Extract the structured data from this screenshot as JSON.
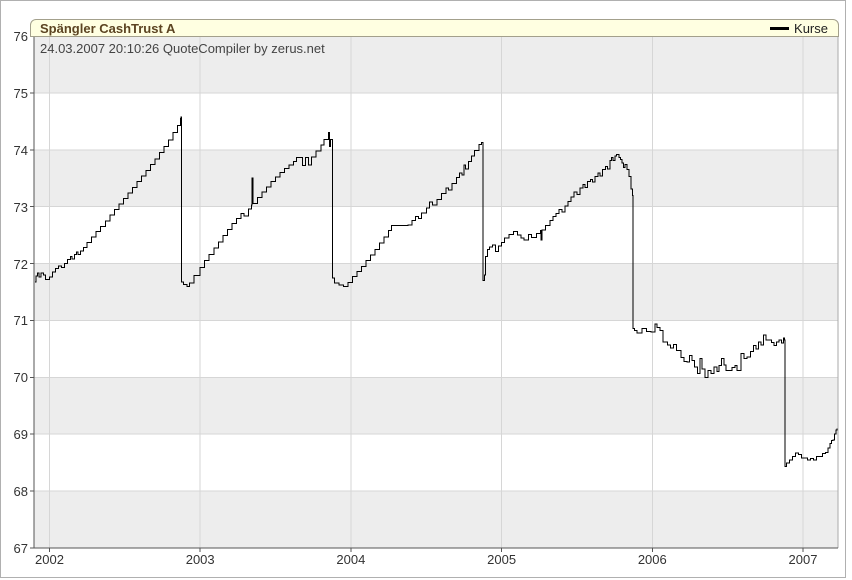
{
  "widget": {
    "title": "Spängler CashTrust A",
    "legend_label": "Kurse",
    "timestamp_note": "24.03.2007 20:10:26 QuoteCompiler by zerus.net"
  },
  "colors": {
    "header_bg": "#ffffe1",
    "header_border": "#a3a08c",
    "title_text": "#5c4422",
    "band_gray": "#ededed",
    "gridline": "#d6d6d6",
    "axis": "#555555",
    "plot_right_border": "#aaaaaa",
    "tick_text": "#333333",
    "series_line": "#000000"
  },
  "chart_data": {
    "type": "line",
    "title": "Spängler CashTrust A",
    "annotation": "24.03.2007 20:10:26 QuoteCompiler by zerus.net",
    "legend_position": "top-right",
    "interpolation": "step-after",
    "grid": true,
    "banding": "alternating horizontal 1-unit bands, gray on odd lower bound",
    "xlim": [
      2001.9,
      2007.23
    ],
    "ylim": [
      67,
      76
    ],
    "x_tick_values": [
      2002,
      2003,
      2004,
      2005,
      2006,
      2007
    ],
    "x_ticks": [
      "2002",
      "2003",
      "2004",
      "2005",
      "2006",
      "2007"
    ],
    "y_tick_values": [
      76,
      75,
      74,
      73,
      72,
      71,
      70,
      69,
      68,
      67
    ],
    "y_ticks": [
      "76",
      "75",
      "74",
      "73",
      "72",
      "71",
      "70",
      "69",
      "68",
      "67"
    ],
    "series": [
      {
        "name": "Kurse",
        "color": "#000000",
        "points": [
          [
            2001.904,
            71.68
          ],
          [
            2001.912,
            71.78
          ],
          [
            2001.92,
            71.83
          ],
          [
            2001.93,
            71.76
          ],
          [
            2001.945,
            71.83
          ],
          [
            2001.96,
            71.8
          ],
          [
            2001.975,
            71.72
          ],
          [
            2002.0,
            71.76
          ],
          [
            2002.02,
            71.85
          ],
          [
            2002.04,
            71.91
          ],
          [
            2002.06,
            71.96
          ],
          [
            2002.08,
            71.93
          ],
          [
            2002.1,
            72.0
          ],
          [
            2002.12,
            72.07
          ],
          [
            2002.14,
            72.12
          ],
          [
            2002.15,
            72.08
          ],
          [
            2002.165,
            72.16
          ],
          [
            2002.18,
            72.2
          ],
          [
            2002.19,
            72.16
          ],
          [
            2002.205,
            72.22
          ],
          [
            2002.225,
            72.28
          ],
          [
            2002.25,
            72.37
          ],
          [
            2002.28,
            72.47
          ],
          [
            2002.31,
            72.56
          ],
          [
            2002.34,
            72.65
          ],
          [
            2002.37,
            72.75
          ],
          [
            2002.4,
            72.85
          ],
          [
            2002.43,
            72.95
          ],
          [
            2002.46,
            73.05
          ],
          [
            2002.49,
            73.14
          ],
          [
            2002.52,
            73.24
          ],
          [
            2002.55,
            73.34
          ],
          [
            2002.58,
            73.44
          ],
          [
            2002.61,
            73.54
          ],
          [
            2002.64,
            73.64
          ],
          [
            2002.67,
            73.74
          ],
          [
            2002.7,
            73.84
          ],
          [
            2002.73,
            73.95
          ],
          [
            2002.76,
            74.06
          ],
          [
            2002.79,
            74.17
          ],
          [
            2002.82,
            74.3
          ],
          [
            2002.85,
            74.43
          ],
          [
            2002.868,
            74.55
          ],
          [
            2002.872,
            74.58
          ],
          [
            2002.877,
            71.68
          ],
          [
            2002.89,
            71.63
          ],
          [
            2002.912,
            71.6
          ],
          [
            2002.93,
            71.66
          ],
          [
            2002.96,
            71.79
          ],
          [
            2003.0,
            71.93
          ],
          [
            2003.03,
            72.05
          ],
          [
            2003.06,
            72.16
          ],
          [
            2003.09,
            72.27
          ],
          [
            2003.12,
            72.38
          ],
          [
            2003.15,
            72.49
          ],
          [
            2003.18,
            72.6
          ],
          [
            2003.21,
            72.7
          ],
          [
            2003.24,
            72.79
          ],
          [
            2003.27,
            72.88
          ],
          [
            2003.29,
            72.84
          ],
          [
            2003.32,
            72.96
          ],
          [
            2003.34,
            73.03
          ],
          [
            2003.344,
            73.5
          ],
          [
            2003.35,
            73.06
          ],
          [
            2003.38,
            73.16
          ],
          [
            2003.41,
            73.26
          ],
          [
            2003.44,
            73.35
          ],
          [
            2003.47,
            73.44
          ],
          [
            2003.5,
            73.52
          ],
          [
            2003.53,
            73.6
          ],
          [
            2003.56,
            73.67
          ],
          [
            2003.59,
            73.73
          ],
          [
            2003.62,
            73.79
          ],
          [
            2003.64,
            73.86
          ],
          [
            2003.665,
            73.86
          ],
          [
            2003.68,
            73.72
          ],
          [
            2003.7,
            73.86
          ],
          [
            2003.72,
            73.73
          ],
          [
            2003.74,
            73.87
          ],
          [
            2003.77,
            73.98
          ],
          [
            2003.8,
            74.08
          ],
          [
            2003.82,
            74.18
          ],
          [
            2003.845,
            74.18
          ],
          [
            2003.852,
            74.3
          ],
          [
            2003.858,
            74.06
          ],
          [
            2003.865,
            74.18
          ],
          [
            2003.875,
            74.18
          ],
          [
            2003.879,
            71.75
          ],
          [
            2003.89,
            71.66
          ],
          [
            2003.92,
            71.62
          ],
          [
            2003.95,
            71.6
          ],
          [
            2003.98,
            71.67
          ],
          [
            2004.01,
            71.77
          ],
          [
            2004.04,
            71.86
          ],
          [
            2004.07,
            71.95
          ],
          [
            2004.1,
            72.05
          ],
          [
            2004.13,
            72.15
          ],
          [
            2004.16,
            72.25
          ],
          [
            2004.19,
            72.36
          ],
          [
            2004.22,
            72.47
          ],
          [
            2004.25,
            72.58
          ],
          [
            2004.27,
            72.67
          ],
          [
            2004.32,
            72.67
          ],
          [
            2004.38,
            72.68
          ],
          [
            2004.405,
            72.76
          ],
          [
            2004.43,
            72.83
          ],
          [
            2004.448,
            72.79
          ],
          [
            2004.47,
            72.89
          ],
          [
            2004.5,
            72.98
          ],
          [
            2004.52,
            73.08
          ],
          [
            2004.54,
            73.03
          ],
          [
            2004.57,
            73.13
          ],
          [
            2004.6,
            73.23
          ],
          [
            2004.63,
            73.33
          ],
          [
            2004.648,
            73.29
          ],
          [
            2004.67,
            73.41
          ],
          [
            2004.7,
            73.51
          ],
          [
            2004.72,
            73.59
          ],
          [
            2004.737,
            73.56
          ],
          [
            2004.75,
            73.73
          ],
          [
            2004.762,
            73.66
          ],
          [
            2004.78,
            73.79
          ],
          [
            2004.8,
            73.89
          ],
          [
            2004.82,
            73.99
          ],
          [
            2004.85,
            74.09
          ],
          [
            2004.868,
            74.13
          ],
          [
            2004.878,
            71.7
          ],
          [
            2004.885,
            71.8
          ],
          [
            2004.893,
            72.12
          ],
          [
            2004.905,
            72.25
          ],
          [
            2004.92,
            72.29
          ],
          [
            2004.94,
            72.33
          ],
          [
            2004.958,
            72.21
          ],
          [
            2004.98,
            72.31
          ],
          [
            2005.0,
            72.37
          ],
          [
            2005.02,
            72.45
          ],
          [
            2005.05,
            72.51
          ],
          [
            2005.08,
            72.56
          ],
          [
            2005.105,
            72.5
          ],
          [
            2005.13,
            72.45
          ],
          [
            2005.15,
            72.41
          ],
          [
            2005.18,
            72.51
          ],
          [
            2005.2,
            72.46
          ],
          [
            2005.23,
            72.53
          ],
          [
            2005.258,
            72.58
          ],
          [
            2005.262,
            72.41
          ],
          [
            2005.268,
            72.59
          ],
          [
            2005.29,
            72.67
          ],
          [
            2005.32,
            72.76
          ],
          [
            2005.34,
            72.83
          ],
          [
            2005.36,
            72.88
          ],
          [
            2005.38,
            72.95
          ],
          [
            2005.4,
            72.91
          ],
          [
            2005.42,
            73.01
          ],
          [
            2005.44,
            73.09
          ],
          [
            2005.46,
            73.17
          ],
          [
            2005.48,
            73.26
          ],
          [
            2005.5,
            73.21
          ],
          [
            2005.52,
            73.33
          ],
          [
            2005.54,
            73.39
          ],
          [
            2005.552,
            73.34
          ],
          [
            2005.57,
            73.44
          ],
          [
            2005.59,
            73.48
          ],
          [
            2005.602,
            73.43
          ],
          [
            2005.62,
            73.53
          ],
          [
            2005.64,
            73.59
          ],
          [
            2005.652,
            73.54
          ],
          [
            2005.67,
            73.65
          ],
          [
            2005.69,
            73.71
          ],
          [
            2005.702,
            73.66
          ],
          [
            2005.72,
            73.81
          ],
          [
            2005.73,
            73.86
          ],
          [
            2005.74,
            73.81
          ],
          [
            2005.752,
            73.89
          ],
          [
            2005.762,
            73.92
          ],
          [
            2005.778,
            73.86
          ],
          [
            2005.79,
            73.83
          ],
          [
            2005.8,
            73.77
          ],
          [
            2005.81,
            73.69
          ],
          [
            2005.82,
            73.74
          ],
          [
            2005.832,
            73.65
          ],
          [
            2005.844,
            73.53
          ],
          [
            2005.858,
            73.31
          ],
          [
            2005.868,
            73.2
          ],
          [
            2005.873,
            70.86
          ],
          [
            2005.882,
            70.82
          ],
          [
            2005.9,
            70.78
          ],
          [
            2005.93,
            70.86
          ],
          [
            2005.96,
            70.81
          ],
          [
            2005.99,
            70.8
          ],
          [
            2006.018,
            70.94
          ],
          [
            2006.03,
            70.88
          ],
          [
            2006.05,
            70.82
          ],
          [
            2006.07,
            70.62
          ],
          [
            2006.1,
            70.57
          ],
          [
            2006.12,
            70.52
          ],
          [
            2006.14,
            70.58
          ],
          [
            2006.16,
            70.47
          ],
          [
            2006.19,
            70.35
          ],
          [
            2006.21,
            70.28
          ],
          [
            2006.23,
            70.27
          ],
          [
            2006.248,
            70.38
          ],
          [
            2006.262,
            70.3
          ],
          [
            2006.28,
            70.18
          ],
          [
            2006.3,
            70.07
          ],
          [
            2006.315,
            70.33
          ],
          [
            2006.33,
            70.15
          ],
          [
            2006.35,
            70.0
          ],
          [
            2006.37,
            70.12
          ],
          [
            2006.39,
            70.07
          ],
          [
            2006.41,
            70.18
          ],
          [
            2006.428,
            70.1
          ],
          [
            2006.443,
            70.21
          ],
          [
            2006.458,
            70.33
          ],
          [
            2006.475,
            70.22
          ],
          [
            2006.49,
            70.12
          ],
          [
            2006.51,
            70.12
          ],
          [
            2006.53,
            70.17
          ],
          [
            2006.55,
            70.21
          ],
          [
            2006.563,
            70.12
          ],
          [
            2006.59,
            70.42
          ],
          [
            2006.61,
            70.33
          ],
          [
            2006.63,
            70.36
          ],
          [
            2006.65,
            70.45
          ],
          [
            2006.67,
            70.56
          ],
          [
            2006.688,
            70.5
          ],
          [
            2006.705,
            70.62
          ],
          [
            2006.72,
            70.57
          ],
          [
            2006.738,
            70.74
          ],
          [
            2006.755,
            70.66
          ],
          [
            2006.77,
            70.66
          ],
          [
            2006.79,
            70.61
          ],
          [
            2006.808,
            70.56
          ],
          [
            2006.825,
            70.62
          ],
          [
            2006.84,
            70.66
          ],
          [
            2006.858,
            70.6
          ],
          [
            2006.87,
            70.69
          ],
          [
            2006.878,
            70.66
          ],
          [
            2006.882,
            68.43
          ],
          [
            2006.892,
            68.49
          ],
          [
            2006.91,
            68.55
          ],
          [
            2006.93,
            68.61
          ],
          [
            2006.95,
            68.67
          ],
          [
            2006.97,
            68.64
          ],
          [
            2006.99,
            68.58
          ],
          [
            2007.01,
            68.58
          ],
          [
            2007.03,
            68.55
          ],
          [
            2007.05,
            68.57
          ],
          [
            2007.07,
            68.55
          ],
          [
            2007.09,
            68.61
          ],
          [
            2007.11,
            68.61
          ],
          [
            2007.13,
            68.66
          ],
          [
            2007.15,
            68.68
          ],
          [
            2007.165,
            68.76
          ],
          [
            2007.178,
            68.84
          ],
          [
            2007.19,
            68.89
          ],
          [
            2007.2,
            68.9
          ],
          [
            2007.21,
            69.0
          ],
          [
            2007.218,
            69.07
          ],
          [
            2007.225,
            69.1
          ]
        ]
      }
    ]
  }
}
